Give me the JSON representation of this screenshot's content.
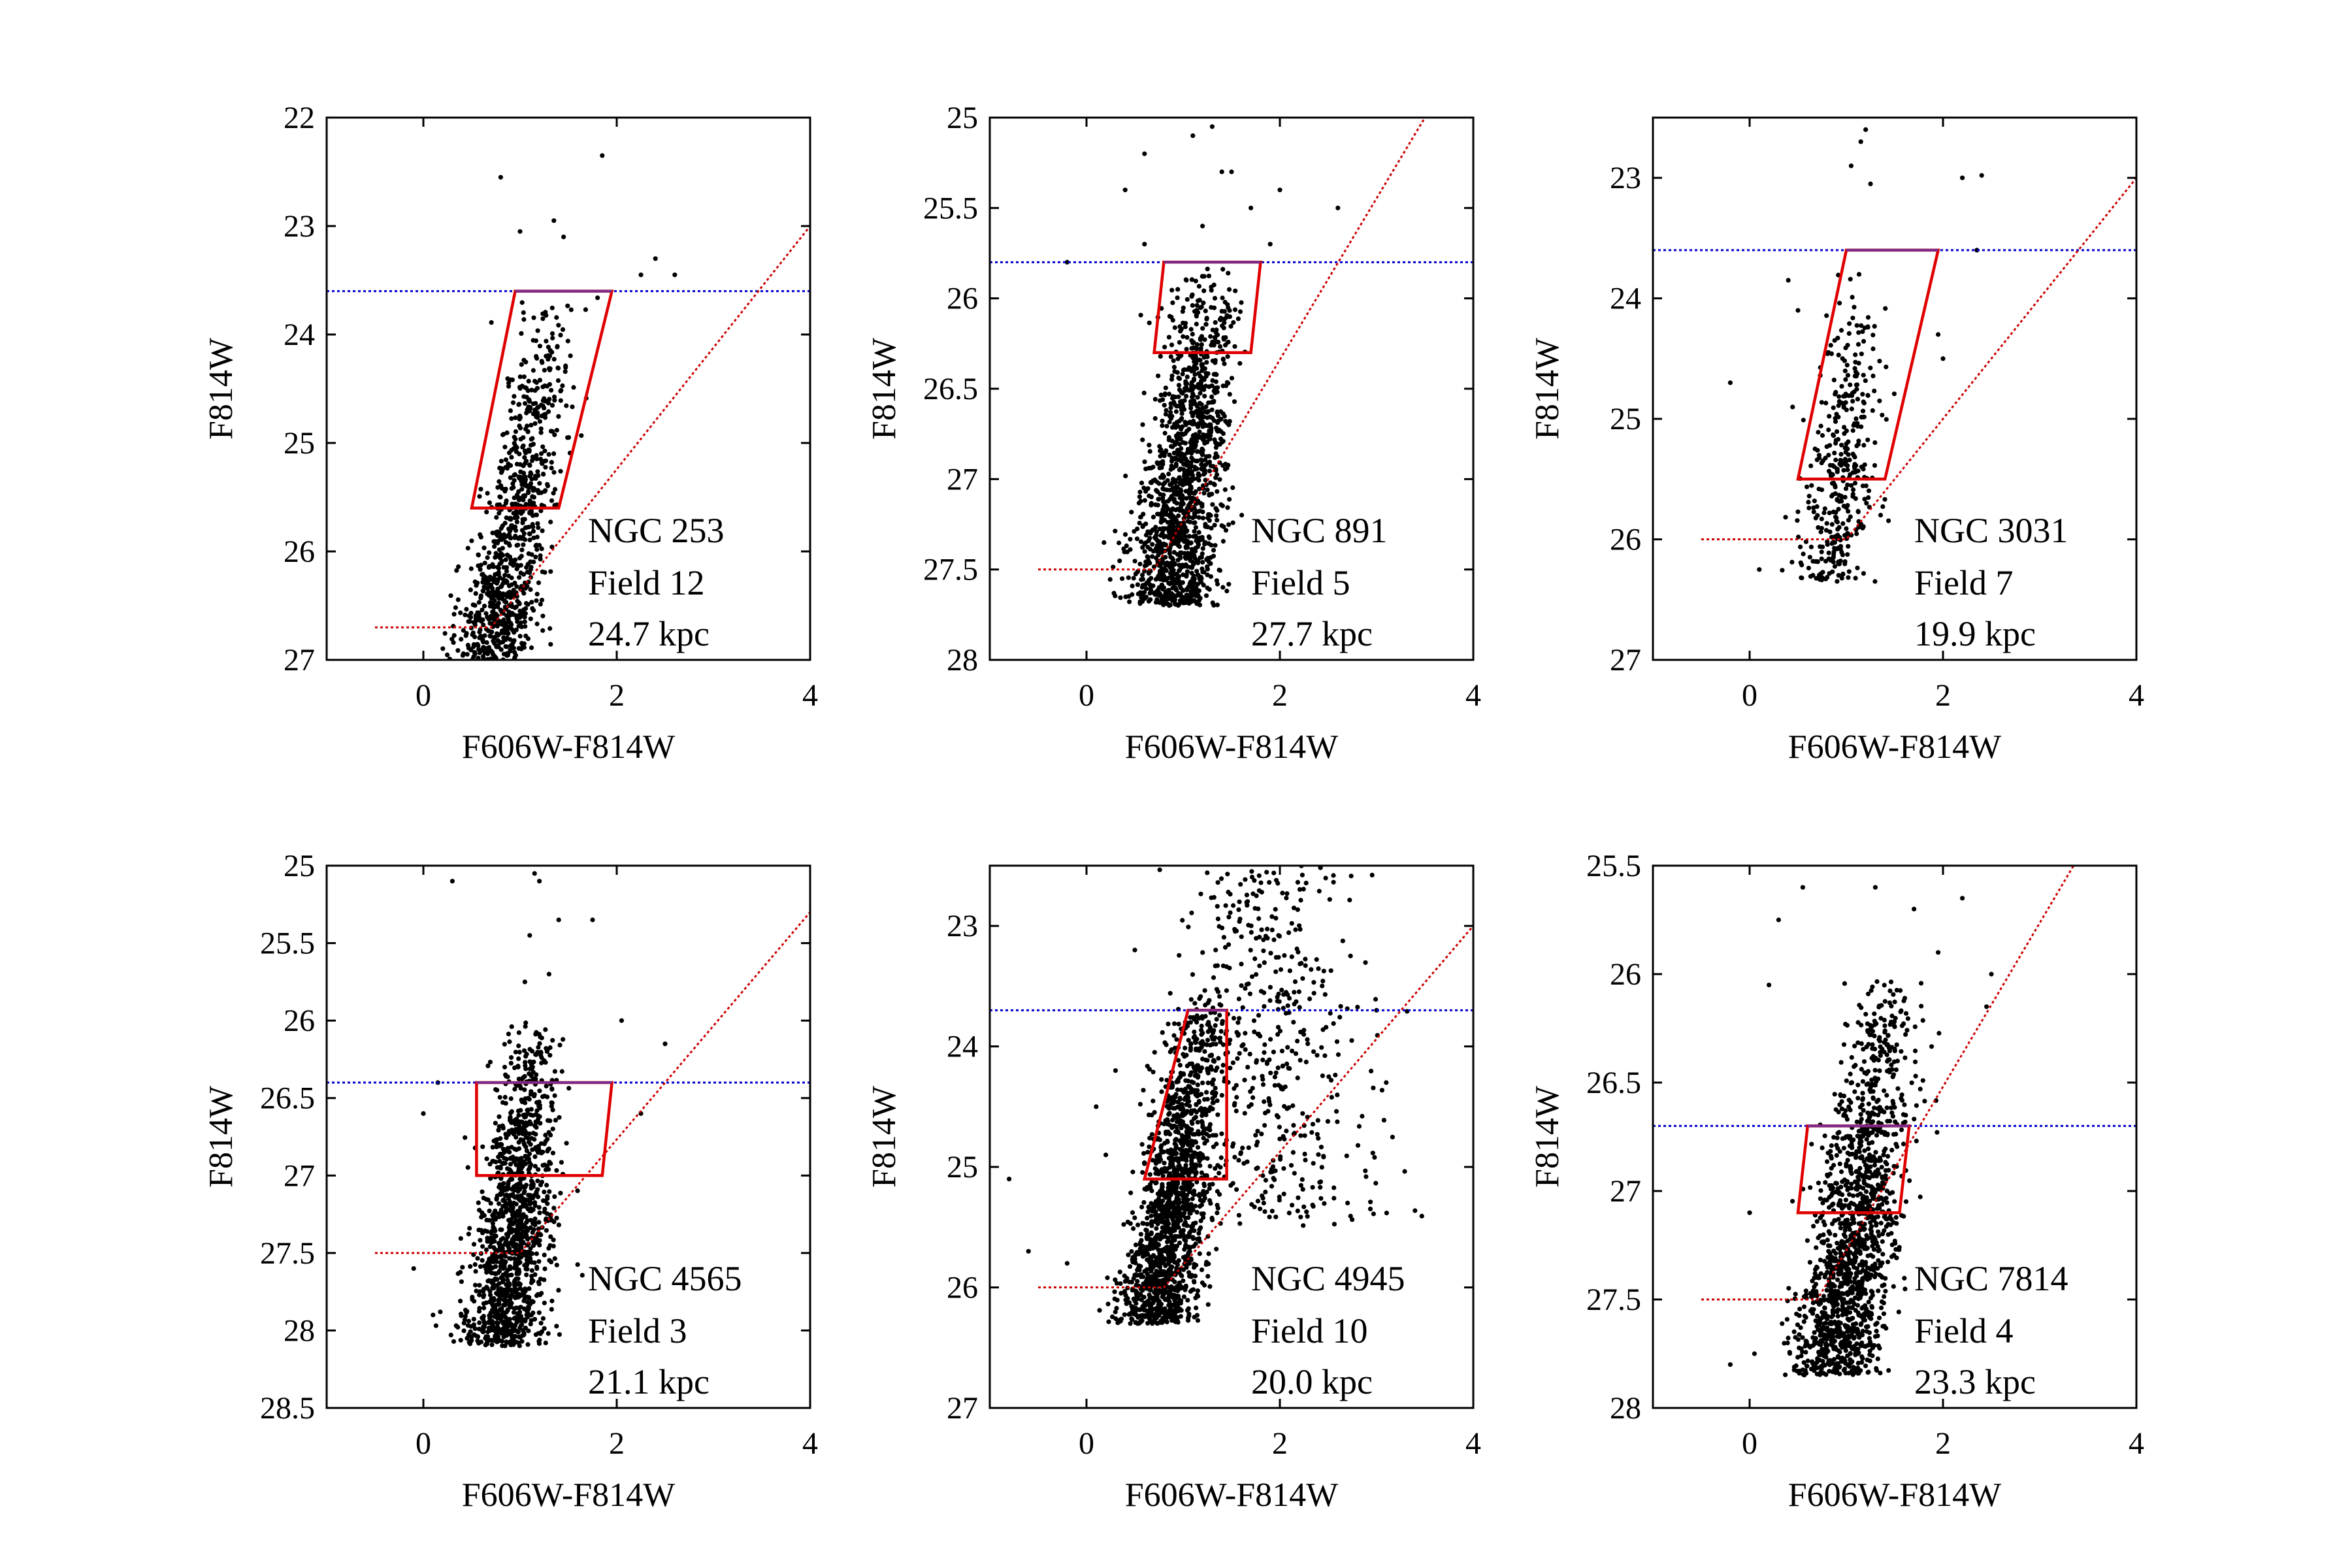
{
  "figure": {
    "type": "scatter",
    "description_note": "Six color-magnitude diagram panels (HST stellar halo fields)"
  },
  "chart_data": [
    {
      "type": "scatter",
      "galaxy": "NGC 253",
      "field": "Field 12",
      "distance": "24.7 kpc",
      "xlabel": "F606W-F814W",
      "ylabel": "F814W",
      "xlim": [
        -1,
        4
      ],
      "ylim": [
        22,
        27
      ],
      "y_inverted": true,
      "xticks": [
        "0",
        "2",
        "4"
      ],
      "xtick_values": [
        0,
        2,
        4
      ],
      "yticks": [
        "22",
        "23",
        "24",
        "25",
        "26",
        "27"
      ],
      "ytick_values": [
        22,
        23,
        24,
        25,
        26,
        27
      ],
      "trgb_line": 23.6,
      "completeness": {
        "mag": 26.7,
        "x_start": -0.5,
        "slope_x0": 0.7,
        "slope_end": [
          4,
          23.0
        ]
      },
      "selection_box": [
        [
          0.95,
          23.6
        ],
        [
          1.95,
          23.6
        ],
        [
          1.4,
          25.6
        ],
        [
          0.5,
          25.6
        ]
      ],
      "star_cloud": {
        "n": 900,
        "core_x": 0.8,
        "core_mag": 26.5,
        "tip_x": 1.35,
        "tip_mag": 23.6,
        "width": 0.17,
        "mag_max": 27.0
      },
      "outliers": [
        [
          0.8,
          22.55
        ],
        [
          1.85,
          22.35
        ],
        [
          1.35,
          22.95
        ],
        [
          1.45,
          23.1
        ],
        [
          1.0,
          23.05
        ],
        [
          2.4,
          23.3
        ],
        [
          2.6,
          23.45
        ],
        [
          2.25,
          23.45
        ]
      ]
    },
    {
      "type": "scatter",
      "galaxy": "NGC 891",
      "field": "Field 5",
      "distance": "27.7 kpc",
      "xlabel": "F606W-F814W",
      "ylabel": "F814W",
      "xlim": [
        -1,
        4
      ],
      "ylim": [
        25,
        28
      ],
      "y_inverted": true,
      "xticks": [
        "0",
        "2",
        "4"
      ],
      "xtick_values": [
        0,
        2,
        4
      ],
      "yticks": [
        "25",
        "25.5",
        "26",
        "26.5",
        "27",
        "27.5",
        "28"
      ],
      "ytick_values": [
        25,
        25.5,
        26,
        26.5,
        27,
        27.5,
        28
      ],
      "trgb_line": 25.8,
      "completeness": {
        "mag": 27.5,
        "x_start": -0.5,
        "slope_x0": 0.7,
        "slope_end": [
          3.5,
          25.0
        ]
      },
      "selection_box": [
        [
          0.8,
          25.8
        ],
        [
          1.8,
          25.8
        ],
        [
          1.7,
          26.3
        ],
        [
          0.7,
          26.3
        ]
      ],
      "star_cloud": {
        "n": 1400,
        "core_x": 0.9,
        "core_mag": 27.4,
        "tip_x": 1.3,
        "tip_mag": 25.8,
        "width": 0.2,
        "mag_max": 27.7
      },
      "outliers": [
        [
          1.1,
          25.1
        ],
        [
          1.3,
          25.05
        ],
        [
          1.5,
          25.3
        ],
        [
          2.0,
          25.4
        ],
        [
          1.7,
          25.5
        ],
        [
          2.6,
          25.5
        ],
        [
          0.6,
          25.2
        ],
        [
          0.4,
          25.4
        ],
        [
          1.9,
          25.7
        ],
        [
          1.2,
          25.6
        ],
        [
          1.4,
          25.3
        ],
        [
          -0.2,
          25.8
        ],
        [
          0.6,
          25.7
        ]
      ]
    },
    {
      "type": "scatter",
      "galaxy": "NGC 3031",
      "field": "Field 7",
      "distance": "19.9 kpc",
      "xlabel": "F606W-F814W",
      "ylabel": "F814W",
      "xlim": [
        -1,
        4
      ],
      "ylim": [
        22.5,
        27
      ],
      "y_inverted": true,
      "xticks": [
        "0",
        "2",
        "4"
      ],
      "xtick_values": [
        0,
        2,
        4
      ],
      "yticks": [
        "23",
        "24",
        "25",
        "26",
        "27"
      ],
      "ytick_values": [
        23,
        24,
        25,
        26,
        27
      ],
      "trgb_line": 23.6,
      "completeness": {
        "mag": 26.0,
        "x_start": -0.5,
        "slope_x0": 1.0,
        "slope_end": [
          4,
          23.0
        ]
      },
      "selection_box": [
        [
          1.0,
          23.6
        ],
        [
          1.95,
          23.6
        ],
        [
          1.4,
          25.5
        ],
        [
          0.5,
          25.5
        ]
      ],
      "star_cloud": {
        "n": 380,
        "core_x": 0.9,
        "core_mag": 26.0,
        "tip_x": 1.15,
        "tip_mag": 23.7,
        "width": 0.17,
        "mag_max": 26.35
      },
      "outliers": [
        [
          1.2,
          22.6
        ],
        [
          1.15,
          22.7
        ],
        [
          1.05,
          22.9
        ],
        [
          1.25,
          23.05
        ],
        [
          2.2,
          23.0
        ],
        [
          2.4,
          22.98
        ],
        [
          0.4,
          23.85
        ],
        [
          1.95,
          24.3
        ],
        [
          2.0,
          24.5
        ],
        [
          -0.2,
          24.7
        ],
        [
          0.5,
          24.1
        ],
        [
          2.35,
          23.6
        ],
        [
          0.1,
          26.25
        ]
      ]
    },
    {
      "type": "scatter",
      "galaxy": "NGC 4565",
      "field": "Field 3",
      "distance": "21.1 kpc",
      "xlabel": "F606W-F814W",
      "ylabel": "F814W",
      "xlim": [
        -1,
        4
      ],
      "ylim": [
        25,
        28.5
      ],
      "y_inverted": true,
      "xticks": [
        "0",
        "2",
        "4"
      ],
      "xtick_values": [
        0,
        2,
        4
      ],
      "yticks": [
        "25",
        "25.5",
        "26",
        "26.5",
        "27",
        "27.5",
        "28",
        "28.5"
      ],
      "ytick_values": [
        25,
        25.5,
        26,
        26.5,
        27,
        27.5,
        28,
        28.5
      ],
      "trgb_line": 26.4,
      "completeness": {
        "mag": 27.5,
        "x_start": -0.5,
        "slope_x0": 1.0,
        "slope_end": [
          4,
          25.3
        ]
      },
      "selection_box": [
        [
          0.55,
          26.4
        ],
        [
          1.95,
          26.4
        ],
        [
          1.85,
          27.0
        ],
        [
          0.55,
          27.0
        ]
      ],
      "star_cloud": {
        "n": 1300,
        "core_x": 0.85,
        "core_mag": 27.8,
        "tip_x": 1.15,
        "tip_mag": 26.0,
        "width": 0.19,
        "mag_max": 28.1
      },
      "outliers": [
        [
          1.15,
          25.05
        ],
        [
          1.2,
          25.1
        ],
        [
          0.3,
          25.1
        ],
        [
          1.4,
          25.35
        ],
        [
          1.75,
          25.35
        ],
        [
          1.1,
          25.45
        ],
        [
          1.3,
          25.7
        ],
        [
          1.05,
          25.75
        ],
        [
          2.05,
          26.0
        ],
        [
          2.5,
          26.15
        ],
        [
          0.15,
          26.4
        ],
        [
          0.0,
          26.6
        ],
        [
          -0.1,
          27.6
        ],
        [
          0.1,
          27.9
        ],
        [
          2.25,
          26.6
        ]
      ]
    },
    {
      "type": "scatter",
      "galaxy": "NGC 4945",
      "field": "Field 10",
      "distance": "20.0 kpc",
      "xlabel": "F606W-F814W",
      "ylabel": "F814W",
      "xlim": [
        -1,
        4
      ],
      "ylim": [
        22.5,
        27
      ],
      "y_inverted": true,
      "xticks": [
        "0",
        "2",
        "4"
      ],
      "xtick_values": [
        0,
        2,
        4
      ],
      "yticks": [
        "23",
        "24",
        "25",
        "26",
        "27"
      ],
      "ytick_values": [
        23,
        24,
        25,
        26,
        27
      ],
      "trgb_line": 23.7,
      "completeness": {
        "mag": 26.0,
        "x_start": -0.5,
        "slope_x0": 0.8,
        "slope_end": [
          4,
          23.0
        ]
      },
      "selection_box": [
        [
          1.05,
          23.7
        ],
        [
          1.45,
          23.7
        ],
        [
          1.45,
          25.1
        ],
        [
          0.6,
          25.1
        ]
      ],
      "star_cloud": {
        "n": 1500,
        "core_x": 0.75,
        "core_mag": 26.0,
        "tip_x": 1.25,
        "tip_mag": 23.5,
        "width": 0.17,
        "mag_max": 26.3
      },
      "wide_cloud": {
        "n": 500,
        "x_center": 1.9,
        "x_width": 0.55,
        "mag_top": 22.5,
        "mag_bottom": 25.5
      },
      "outliers": [
        [
          -0.8,
          25.1
        ],
        [
          -0.6,
          25.7
        ],
        [
          -0.2,
          25.8
        ],
        [
          0.1,
          24.5
        ],
        [
          0.3,
          24.2
        ],
        [
          0.2,
          24.9
        ],
        [
          0.5,
          23.2
        ],
        [
          2.7,
          25.3
        ],
        [
          3.1,
          24.3
        ],
        [
          3.0,
          23.7
        ]
      ]
    },
    {
      "type": "scatter",
      "galaxy": "NGC 7814",
      "field": "Field 4",
      "distance": "23.3 kpc",
      "xlabel": "F606W-F814W",
      "ylabel": "F814W",
      "xlim": [
        -1,
        4
      ],
      "ylim": [
        25.5,
        28
      ],
      "y_inverted": true,
      "xticks": [
        "0",
        "2",
        "4"
      ],
      "xtick_values": [
        0,
        2,
        4
      ],
      "yticks": [
        "25.5",
        "26",
        "26.5",
        "27",
        "27.5",
        "28"
      ],
      "ytick_values": [
        25.5,
        26,
        26.5,
        27,
        27.5,
        28
      ],
      "trgb_line": 26.7,
      "completeness": {
        "mag": 27.5,
        "x_start": -0.5,
        "slope_x0": 0.7,
        "slope_end": [
          3.35,
          25.5
        ]
      },
      "selection_box": [
        [
          0.6,
          26.7
        ],
        [
          1.65,
          26.7
        ],
        [
          1.55,
          27.1
        ],
        [
          0.5,
          27.1
        ]
      ],
      "star_cloud": {
        "n": 1500,
        "core_x": 0.95,
        "core_mag": 27.6,
        "tip_x": 1.45,
        "tip_mag": 26.0,
        "width": 0.2,
        "mag_max": 27.85
      },
      "outliers": [
        [
          0.55,
          25.6
        ],
        [
          1.3,
          25.6
        ],
        [
          1.7,
          25.7
        ],
        [
          2.2,
          25.65
        ],
        [
          1.95,
          25.9
        ],
        [
          2.5,
          26.0
        ],
        [
          0.3,
          25.75
        ],
        [
          0.2,
          26.05
        ],
        [
          2.45,
          26.15
        ],
        [
          0.0,
          27.1
        ],
        [
          -0.2,
          27.8
        ],
        [
          0.05,
          27.75
        ]
      ]
    }
  ]
}
